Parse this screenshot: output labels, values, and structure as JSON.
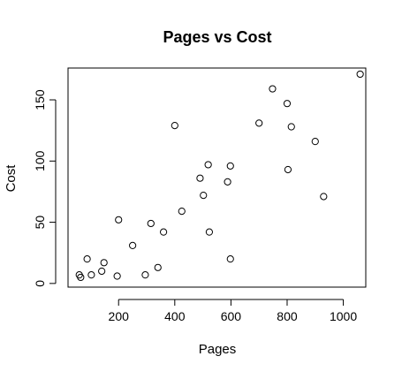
{
  "chart_data": {
    "type": "scatter",
    "title": "Pages vs Cost",
    "xlabel": "Pages",
    "ylabel": "Cost",
    "xlim": [
      20,
      1080
    ],
    "ylim": [
      -3,
      176
    ],
    "x_ticks": [
      200,
      400,
      600,
      800,
      1000
    ],
    "y_ticks": [
      0,
      50,
      100,
      150
    ],
    "x_tick_labels": [
      "200",
      "400",
      "600",
      "800",
      "1000"
    ],
    "y_tick_labels": [
      "0",
      "50",
      "100",
      "150"
    ],
    "grid": false,
    "legend": "none",
    "marker": "open-circle",
    "colors": {
      "points": "#000000",
      "frame": "#000000",
      "background": "#ffffff"
    },
    "points": [
      {
        "x": 60,
        "y": 7
      },
      {
        "x": 65,
        "y": 5
      },
      {
        "x": 88,
        "y": 20
      },
      {
        "x": 103,
        "y": 7
      },
      {
        "x": 140,
        "y": 10
      },
      {
        "x": 148,
        "y": 17
      },
      {
        "x": 195,
        "y": 6
      },
      {
        "x": 200,
        "y": 52
      },
      {
        "x": 250,
        "y": 31
      },
      {
        "x": 295,
        "y": 7
      },
      {
        "x": 315,
        "y": 49
      },
      {
        "x": 340,
        "y": 13
      },
      {
        "x": 360,
        "y": 42
      },
      {
        "x": 400,
        "y": 129
      },
      {
        "x": 425,
        "y": 59
      },
      {
        "x": 490,
        "y": 86
      },
      {
        "x": 502,
        "y": 72
      },
      {
        "x": 519,
        "y": 97
      },
      {
        "x": 523,
        "y": 42
      },
      {
        "x": 588,
        "y": 83
      },
      {
        "x": 598,
        "y": 20
      },
      {
        "x": 598,
        "y": 96
      },
      {
        "x": 700,
        "y": 131
      },
      {
        "x": 748,
        "y": 159
      },
      {
        "x": 800,
        "y": 147
      },
      {
        "x": 803,
        "y": 93
      },
      {
        "x": 815,
        "y": 128
      },
      {
        "x": 900,
        "y": 116
      },
      {
        "x": 930,
        "y": 71
      },
      {
        "x": 1060,
        "y": 171
      }
    ]
  }
}
